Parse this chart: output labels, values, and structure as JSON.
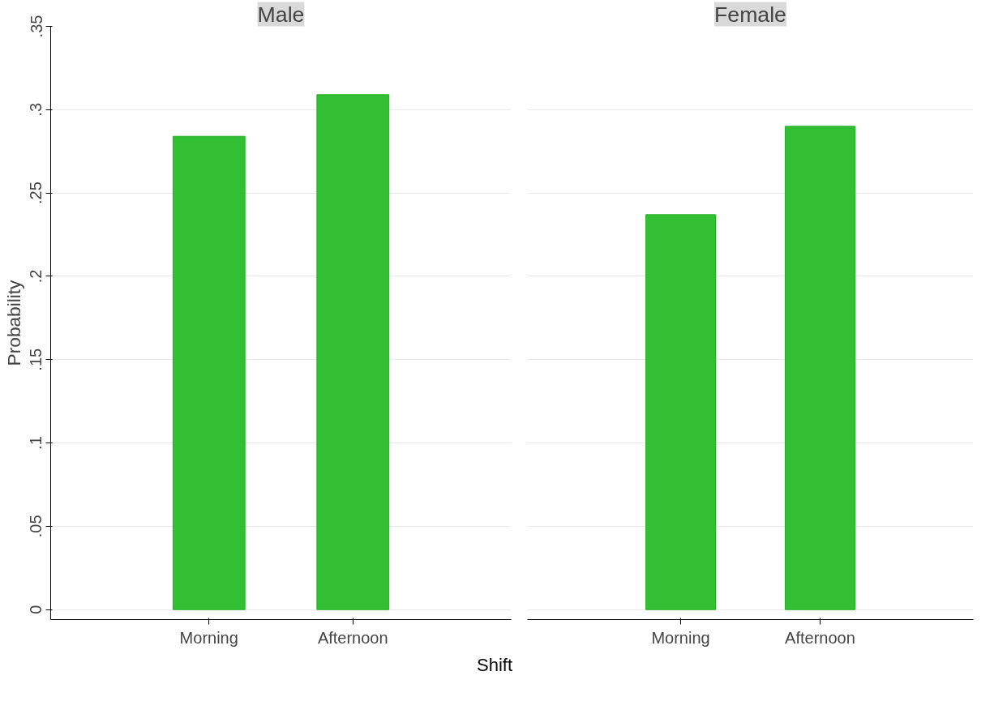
{
  "chart_data": [
    {
      "type": "bar",
      "title": "Male",
      "categories": [
        "Morning",
        "Afternoon"
      ],
      "series": [
        {
          "color": "#33bf33",
          "values": [
            0.284,
            0.309
          ]
        }
      ],
      "ylim": [
        0,
        0.35
      ],
      "yticks": [
        0,
        {
          "value": 0.05,
          "label": ".05"
        },
        {
          "value": 0.1,
          "label": ".1"
        },
        {
          "value": 0.15,
          "label": ".15"
        },
        {
          "value": 0.2,
          "label": ".2"
        },
        {
          "value": 0.25,
          "label": ".25"
        },
        {
          "value": 0.3,
          "label": ".3"
        },
        {
          "value": 0.35,
          "label": ".35"
        }
      ],
      "ylabel": "Probability",
      "xlabel": "Shift",
      "grid": "y"
    },
    {
      "type": "bar",
      "title": "Female",
      "categories": [
        "Morning",
        "Afternoon"
      ],
      "series": [
        {
          "color": "#33bf33",
          "values": [
            0.237,
            0.29
          ]
        }
      ],
      "ylim": [
        0,
        0.35
      ],
      "yticks": [
        0,
        0.05,
        0.1,
        0.15,
        0.2,
        0.25,
        0.3,
        0.35
      ],
      "tick_labels": "x",
      "grid": "y"
    }
  ]
}
